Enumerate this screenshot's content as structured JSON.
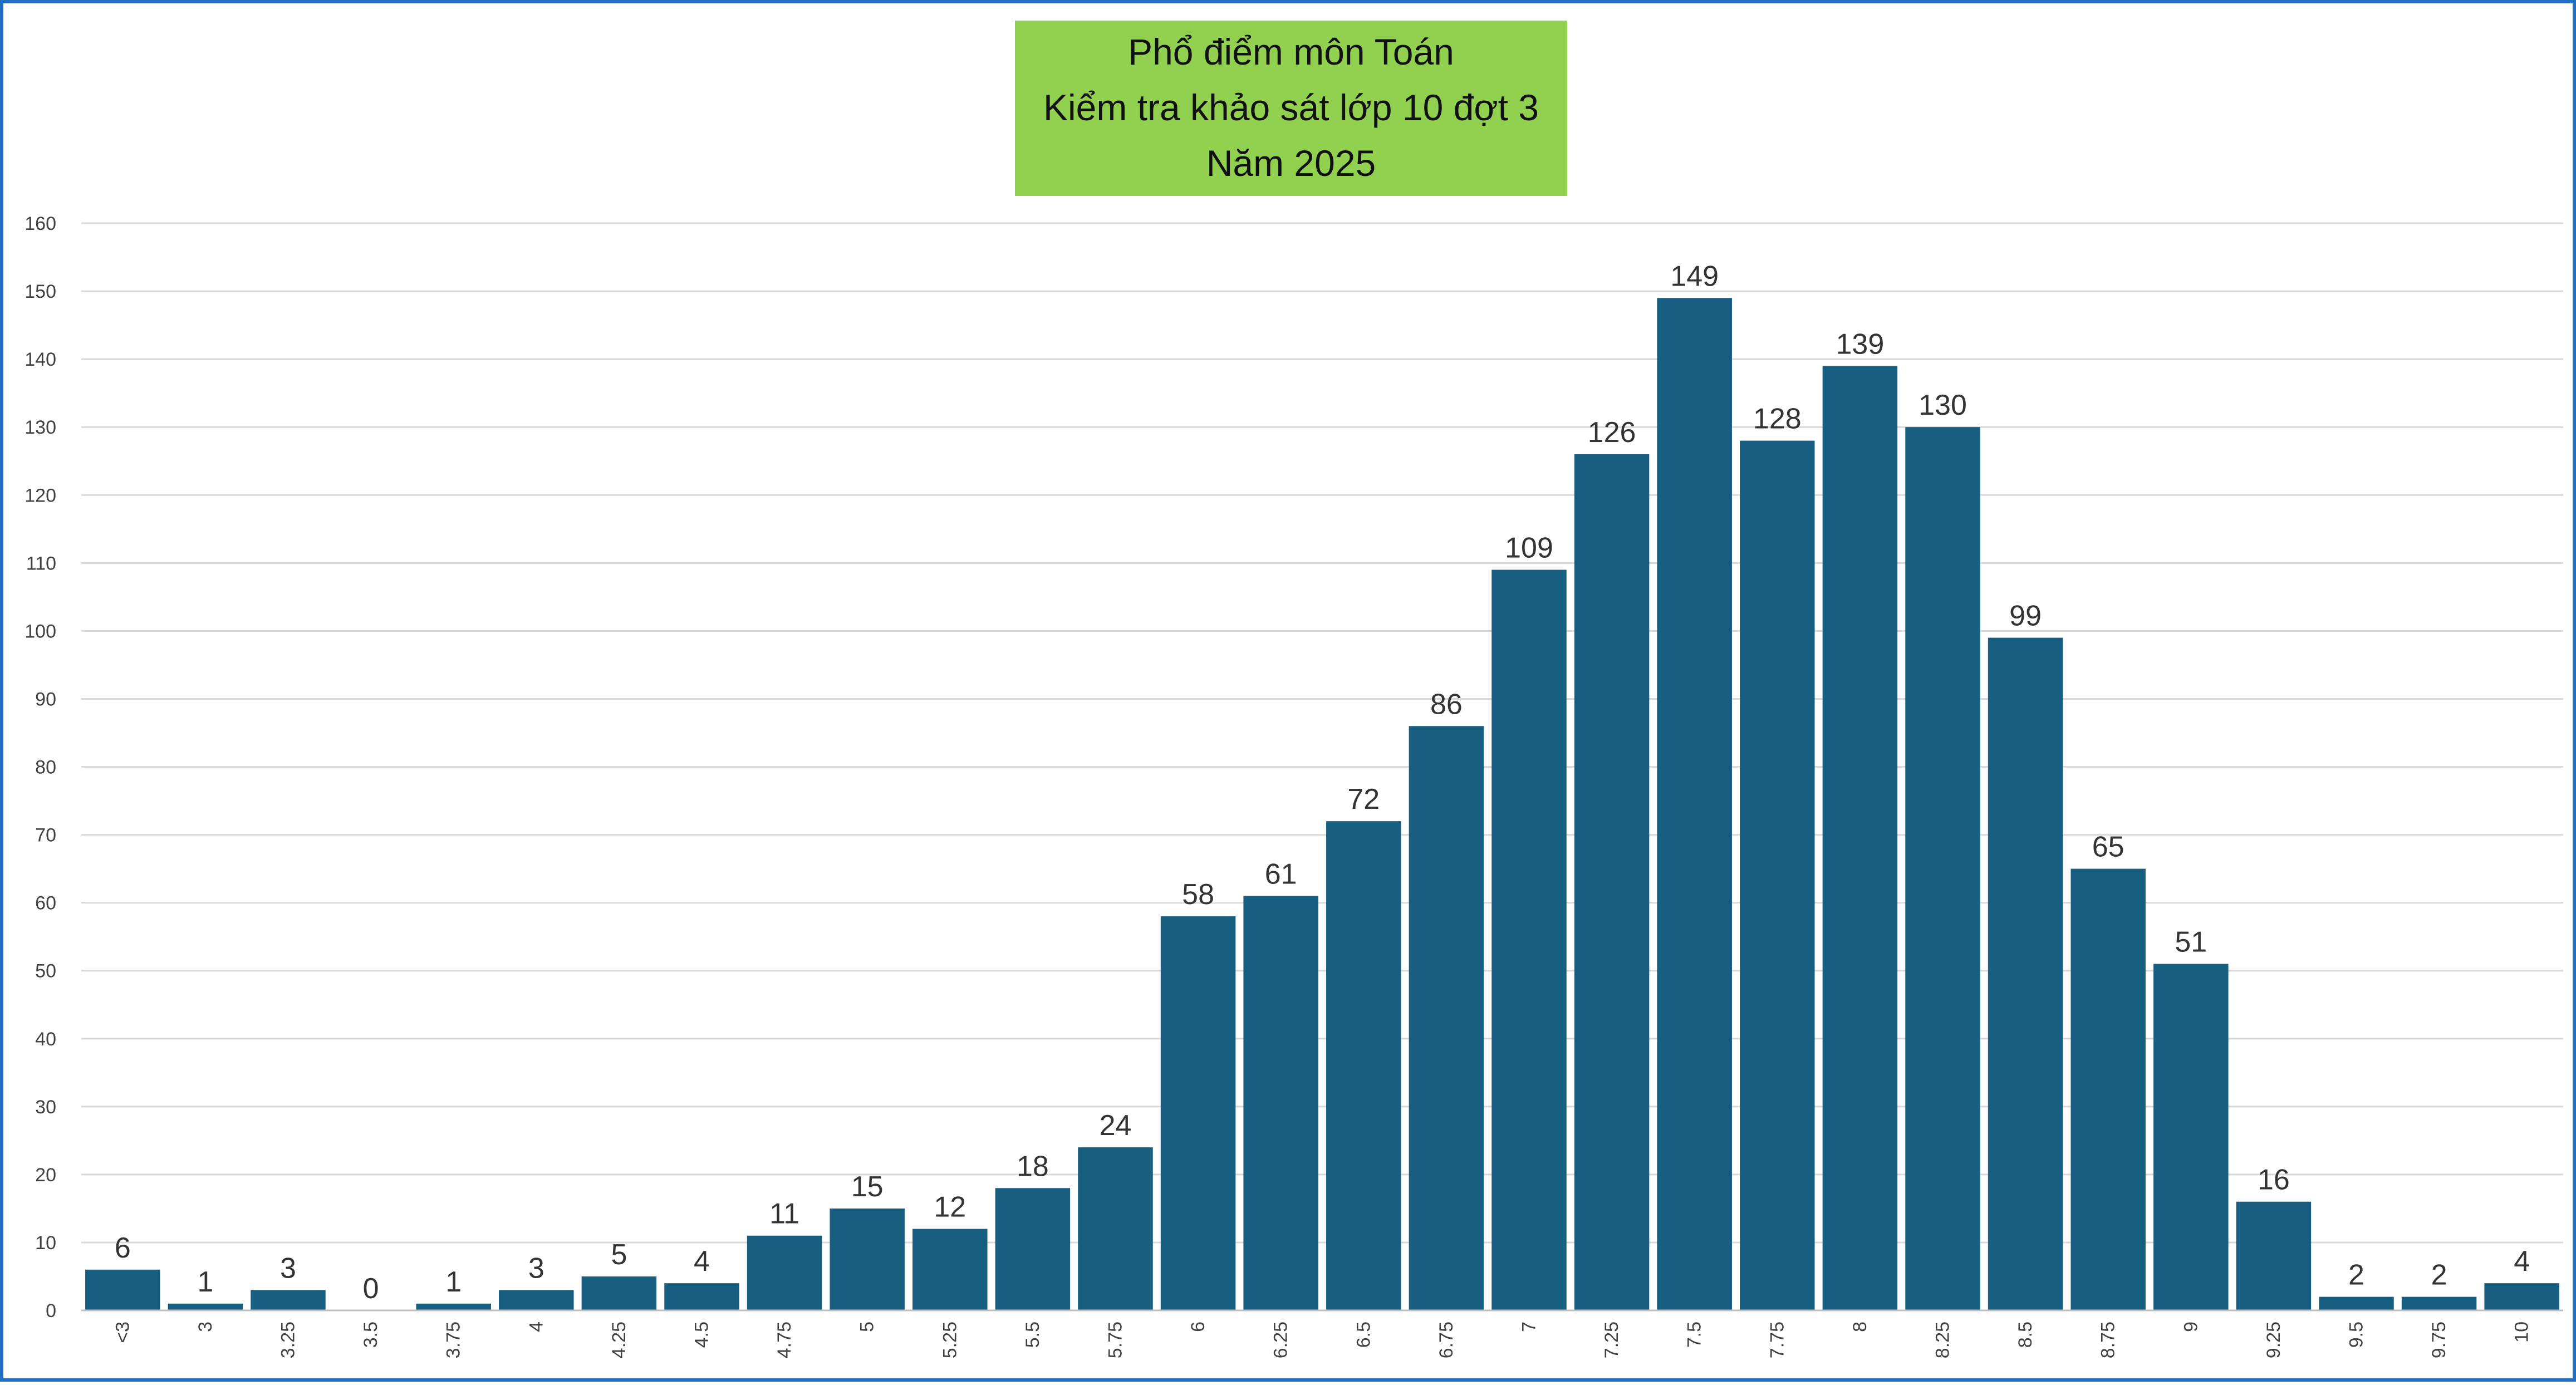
{
  "chart_data": {
    "type": "bar",
    "title_lines": [
      "Phổ điểm môn Toán",
      "Kiểm tra khảo sát lớp 10 đợt 3",
      "Năm 2025"
    ],
    "categories": [
      "<3",
      "3",
      "3.25",
      "3.5",
      "3.75",
      "4",
      "4.25",
      "4.5",
      "4.75",
      "5",
      "5.25",
      "5.5",
      "5.75",
      "6",
      "6.25",
      "6.5",
      "6.75",
      "7",
      "7.25",
      "7.5",
      "7.75",
      "8",
      "8.25",
      "8.5",
      "8.75",
      "9",
      "9.25",
      "9.5",
      "9.75",
      "10"
    ],
    "values": [
      6,
      1,
      3,
      0,
      1,
      3,
      5,
      4,
      11,
      15,
      12,
      18,
      24,
      58,
      61,
      72,
      86,
      109,
      126,
      149,
      128,
      139,
      130,
      99,
      65,
      51,
      16,
      2,
      2,
      4
    ],
    "ylim": [
      0,
      160
    ],
    "y_ticks": [
      0,
      10,
      20,
      30,
      40,
      50,
      60,
      70,
      80,
      90,
      100,
      110,
      120,
      130,
      140,
      150,
      160
    ],
    "grid": true,
    "data_labels": true,
    "legend": "none",
    "colors": {
      "bar": "#175e80",
      "title_background": "#92d050",
      "frame_border": "#1f6fc5",
      "gridline": "#d9d9d9"
    }
  }
}
